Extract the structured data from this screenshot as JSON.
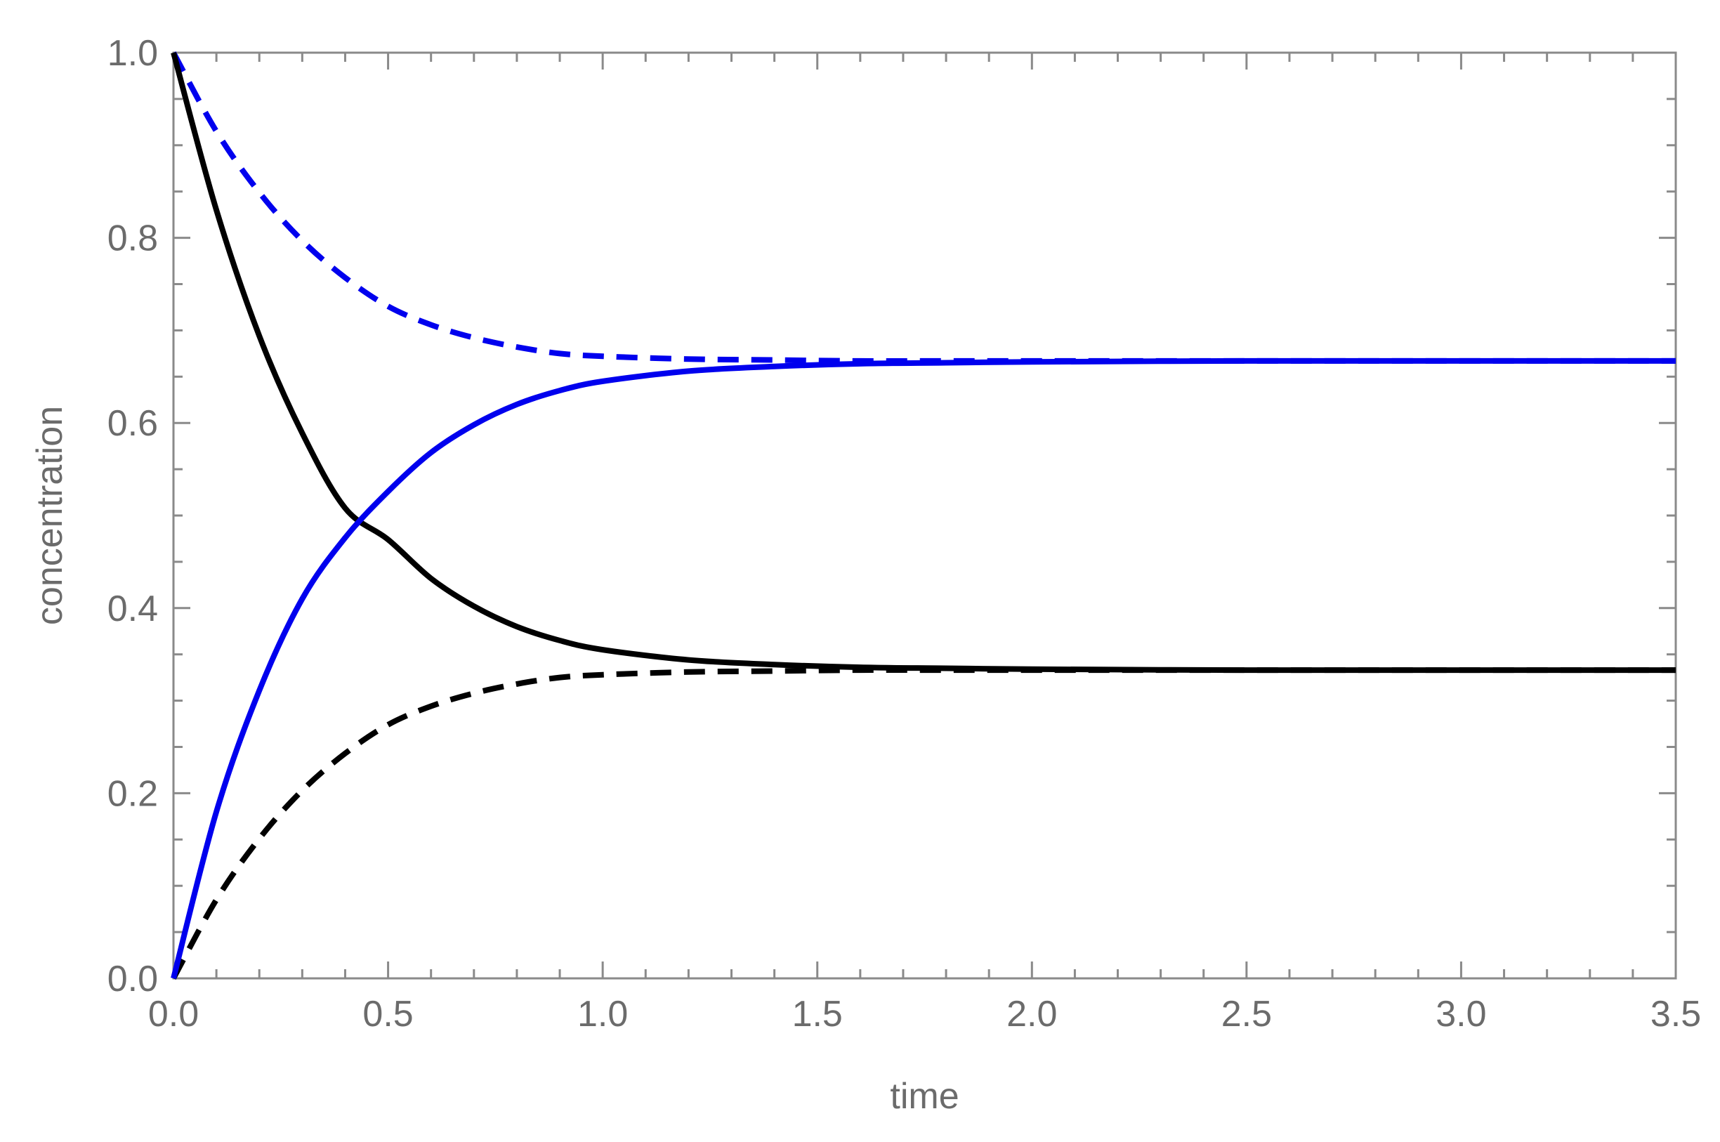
{
  "chart_data": {
    "type": "line",
    "title": "",
    "xlabel": "time",
    "ylabel": "concentration",
    "xlim": [
      0,
      3.5
    ],
    "ylim": [
      0,
      1.0
    ],
    "x_ticks": [
      0.0,
      0.5,
      1.0,
      1.5,
      2.0,
      2.5,
      3.0,
      3.5
    ],
    "x_tick_labels": [
      "0.0",
      "0.5",
      "1.0",
      "1.5",
      "2.0",
      "2.5",
      "3.0",
      "3.5"
    ],
    "y_ticks": [
      0.0,
      0.2,
      0.4,
      0.6,
      0.8,
      1.0
    ],
    "y_tick_labels": [
      "0.0",
      "0.2",
      "0.4",
      "0.6",
      "0.8",
      "1.0"
    ],
    "x_minor_step": 0.1,
    "y_minor_step": 0.05,
    "grid": false,
    "legend": "none",
    "series": [
      {
        "color": "#000000",
        "style": "solid",
        "x": [
          0,
          0.1,
          0.2,
          0.3,
          0.4,
          0.5,
          0.6,
          0.7,
          0.8,
          0.9,
          1.0,
          1.2,
          1.4,
          1.6,
          1.8,
          2.0,
          2.5,
          3.0,
          3.5
        ],
        "y": [
          1.0,
          0.83,
          0.694,
          0.589,
          0.508,
          0.474,
          0.432,
          0.402,
          0.38,
          0.365,
          0.355,
          0.344,
          0.339,
          0.336,
          0.335,
          0.334,
          0.333,
          0.333,
          0.333
        ]
      },
      {
        "color": "#0000ee",
        "style": "solid",
        "x": [
          0,
          0.1,
          0.2,
          0.3,
          0.4,
          0.5,
          0.6,
          0.7,
          0.8,
          0.9,
          1.0,
          1.2,
          1.4,
          1.6,
          1.8,
          2.0,
          2.5,
          3.0,
          3.5
        ],
        "y": [
          0.0,
          0.18,
          0.311,
          0.41,
          0.476,
          0.526,
          0.568,
          0.598,
          0.62,
          0.635,
          0.645,
          0.656,
          0.661,
          0.664,
          0.665,
          0.666,
          0.667,
          0.667,
          0.667
        ]
      },
      {
        "color": "#0000ee",
        "style": "dashed",
        "x": [
          0,
          0.1,
          0.2,
          0.3,
          0.4,
          0.5,
          0.6,
          0.7,
          0.8,
          0.9,
          1.0,
          1.2,
          1.4,
          1.6,
          1.8,
          2.0,
          2.5,
          3.0,
          3.5
        ],
        "y": [
          1.0,
          0.915,
          0.849,
          0.797,
          0.757,
          0.726,
          0.706,
          0.692,
          0.682,
          0.675,
          0.672,
          0.669,
          0.668,
          0.667,
          0.667,
          0.667,
          0.667,
          0.667,
          0.667
        ]
      },
      {
        "color": "#000000",
        "style": "dashed",
        "x": [
          0,
          0.1,
          0.2,
          0.3,
          0.4,
          0.5,
          0.6,
          0.7,
          0.8,
          0.9,
          1.0,
          1.2,
          1.4,
          1.6,
          1.8,
          2.0,
          2.5,
          3.0,
          3.5
        ],
        "y": [
          0.0,
          0.085,
          0.151,
          0.203,
          0.243,
          0.274,
          0.294,
          0.308,
          0.318,
          0.325,
          0.328,
          0.331,
          0.332,
          0.333,
          0.333,
          0.333,
          0.333,
          0.333,
          0.333
        ]
      }
    ]
  }
}
